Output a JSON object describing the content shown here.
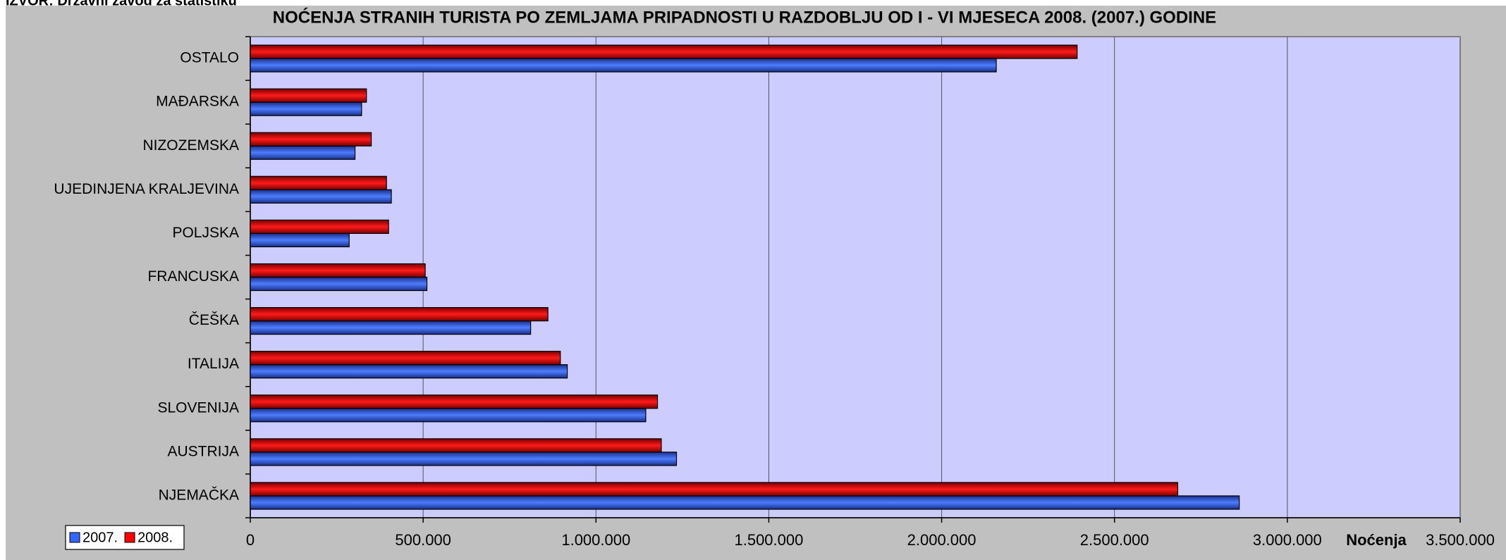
{
  "source": "IZVOR: Državni zavod za statistiku",
  "chart_data": {
    "type": "bar",
    "orientation": "horizontal",
    "title": "NOĆENJA STRANIH TURISTA PO ZEMLJAMA PRIPADNOSTI U RAZDOBLJU OD I - VI MJESECA 2008. (2007.) GODINE",
    "xlabel": "Noćenja",
    "categories": [
      "NJEMAČKA",
      "AUSTRIJA",
      "SLOVENIJA",
      "ITALIJA",
      "ČEŠKA",
      "FRANCUSKA",
      "POLJSKA",
      "UJEDINJENA KRALJEVINA",
      "NIZOZEMSKA",
      "MAĐARSKA",
      "OSTALO"
    ],
    "series": [
      {
        "name": "2007.",
        "color": "#3366ff",
        "values": [
          2861000,
          1233000,
          1144000,
          917000,
          811000,
          511000,
          286000,
          408000,
          303000,
          322000,
          2158000
        ]
      },
      {
        "name": "2008.",
        "color": "#ff0000",
        "values": [
          2683000,
          1189000,
          1178000,
          897000,
          861000,
          506000,
          400000,
          394000,
          350000,
          336000,
          2392000
        ]
      }
    ],
    "xlim": [
      0,
      3500000
    ],
    "xticks": [
      0,
      {
        "value": 500000,
        "label": "500.000"
      },
      {
        "value": 1000000,
        "label": "1.000.000"
      },
      {
        "value": 1500000,
        "label": "1.500.000"
      },
      {
        "value": 2000000,
        "label": "2.000.000"
      },
      {
        "value": 2500000,
        "label": "2.500.000"
      },
      {
        "value": 3000000,
        "label": "3.000.000"
      },
      {
        "value": 3500000,
        "label": "3.500.000"
      }
    ],
    "grid": true,
    "legend": "lower left"
  }
}
